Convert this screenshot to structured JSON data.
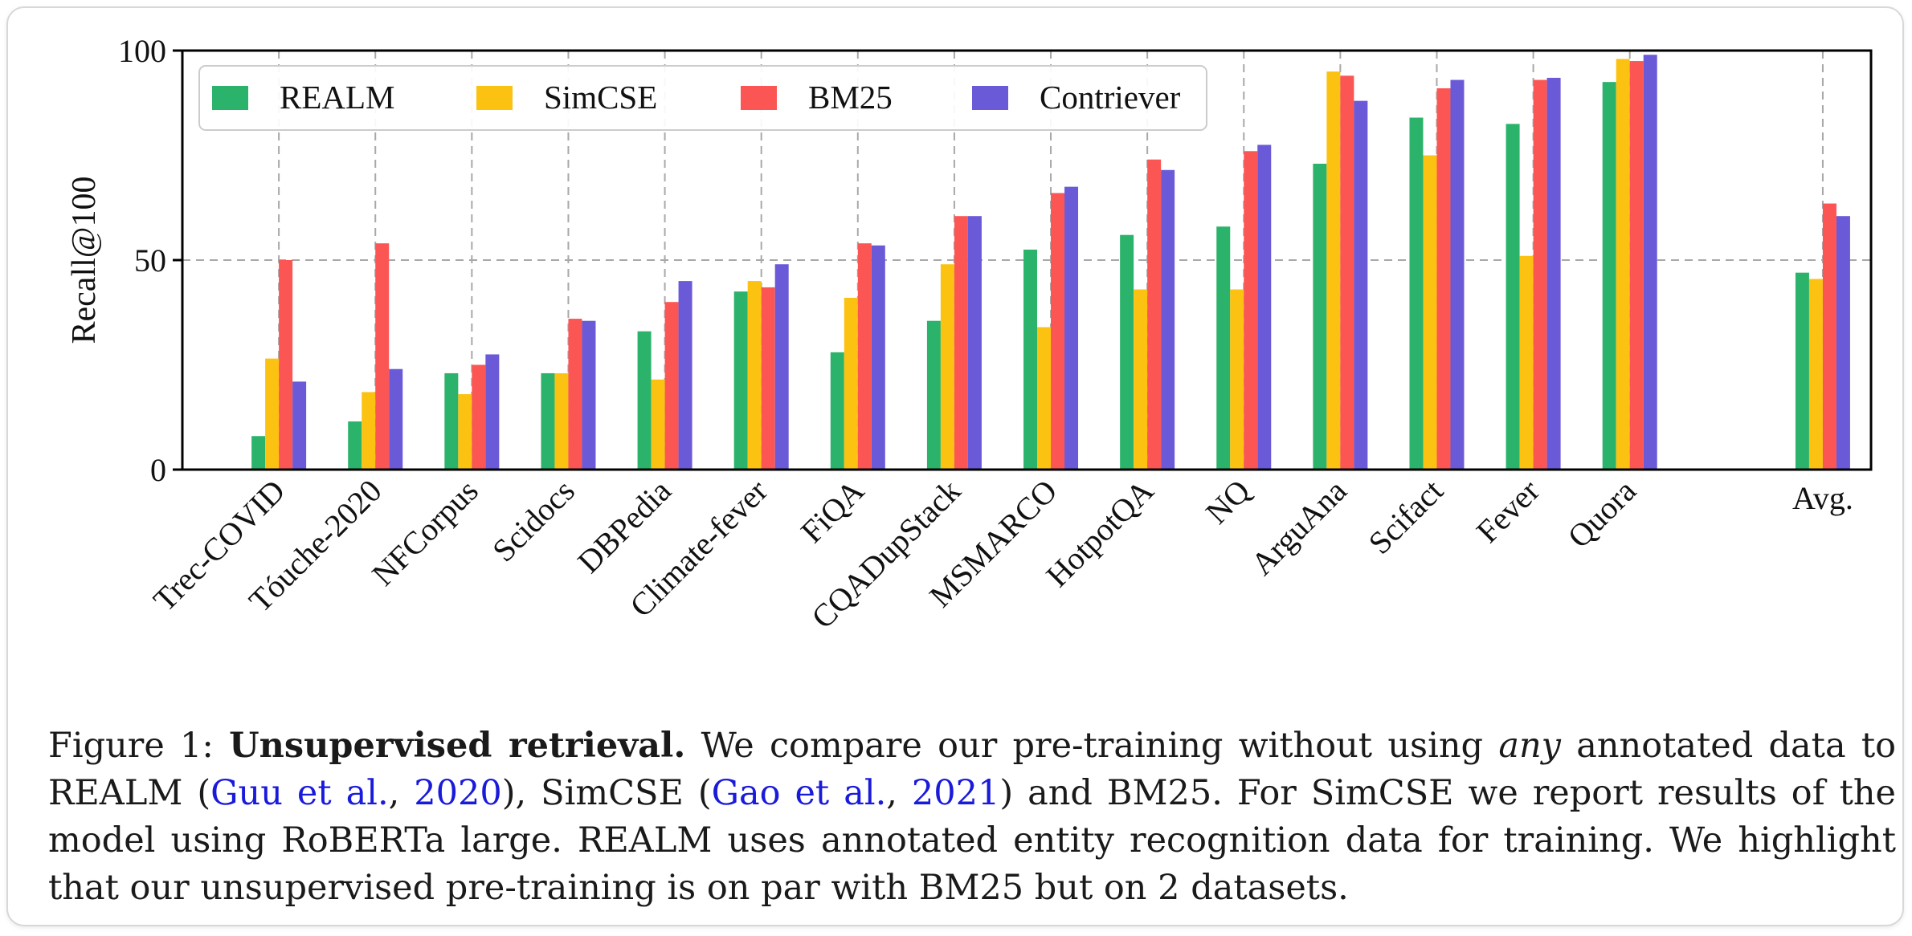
{
  "chart_data": {
    "type": "bar",
    "ylabel": "Recall@100",
    "ylim": [
      0,
      100
    ],
    "yticks": [
      0,
      50,
      100
    ],
    "grid": true,
    "legend_position": "top-left",
    "categories": [
      "Trec-COVID",
      "Tóuche-2020",
      "NFCorpus",
      "Scidocs",
      "DBPedia",
      "Climate-fever",
      "FiQA",
      "CQADupStack",
      "MSMARCO",
      "HotpotQA",
      "NQ",
      "ArguAna",
      "Scifact",
      "Fever",
      "Quora",
      "Avg."
    ],
    "category_slots": [
      0,
      1,
      2,
      3,
      4,
      5,
      6,
      7,
      8,
      9,
      10,
      11,
      12,
      13,
      14,
      16
    ],
    "series": [
      {
        "name": "REALM",
        "color": "#2bb36b",
        "values": [
          8,
          11.5,
          23,
          23,
          33,
          42.5,
          28,
          35.5,
          52.5,
          56,
          58,
          73,
          84,
          82.5,
          92.5,
          47
        ]
      },
      {
        "name": "SimCSE",
        "color": "#fcc212",
        "values": [
          26.5,
          18.5,
          18,
          23,
          21.5,
          45,
          41,
          49,
          34,
          43,
          43,
          95,
          75,
          51,
          98,
          45.5
        ]
      },
      {
        "name": "BM25",
        "color": "#fb5654",
        "values": [
          50,
          54,
          25,
          36,
          40,
          43.5,
          54,
          60.5,
          66,
          74,
          76,
          94,
          91,
          93,
          97.5,
          63.5
        ]
      },
      {
        "name": "Contriever",
        "color": "#6a5ad8",
        "values": [
          21,
          24,
          27.5,
          35.5,
          45,
          49,
          53.5,
          60.5,
          67.5,
          71.5,
          77.5,
          88,
          93,
          93.5,
          99,
          60.5
        ]
      }
    ]
  },
  "caption": {
    "figure_label": "Figure 1:",
    "title": "Unsupervised retrieval.",
    "text_1": "We compare our pre-training without using",
    "emph": "any",
    "text_2": "annotated data to REALM (",
    "cite1_authors": "Guu et al.",
    "cite_sep1": ", ",
    "cite1_year": "2020",
    "text_3": "), SimCSE (",
    "cite2_authors": "Gao et al.",
    "cite_sep2": ", ",
    "cite2_year": "2021",
    "text_4": ") and BM25. For SimCSE we report results of the model using RoBERTa large. REALM uses annotated entity recognition data for training. We highlight that our unsupervised pre-training is on par with BM25 but on 2 datasets."
  }
}
